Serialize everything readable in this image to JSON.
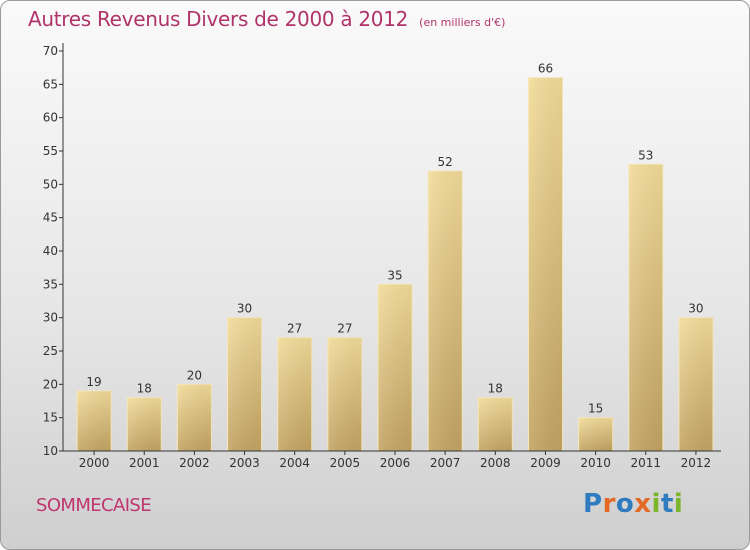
{
  "title": "Autres Revenus Divers de 2000 à 2012",
  "subtitle": "(en milliers d'€)",
  "place": "SOMMECAISE",
  "logo": {
    "text": "Proxiti"
  },
  "colors": {
    "title": "#b0336a",
    "bar_light": "#f3dc9a",
    "bar_dark": "#c3a463",
    "axis": "#333333"
  },
  "chart_data": {
    "type": "bar",
    "title": "Autres Revenus Divers de 2000 à 2012",
    "subtitle": "(en milliers d'€)",
    "xlabel": "",
    "ylabel": "",
    "categories": [
      "2000",
      "2001",
      "2002",
      "2003",
      "2004",
      "2005",
      "2006",
      "2007",
      "2008",
      "2009",
      "2010",
      "2011",
      "2012"
    ],
    "values": [
      19,
      18,
      20,
      30,
      27,
      27,
      35,
      52,
      18,
      66,
      15,
      53,
      30
    ],
    "ylim": [
      10,
      70
    ],
    "yticks": [
      10,
      15,
      20,
      25,
      30,
      35,
      40,
      45,
      50,
      55,
      60,
      65,
      70
    ],
    "grid": false,
    "data_labels": true,
    "legend": "none"
  }
}
